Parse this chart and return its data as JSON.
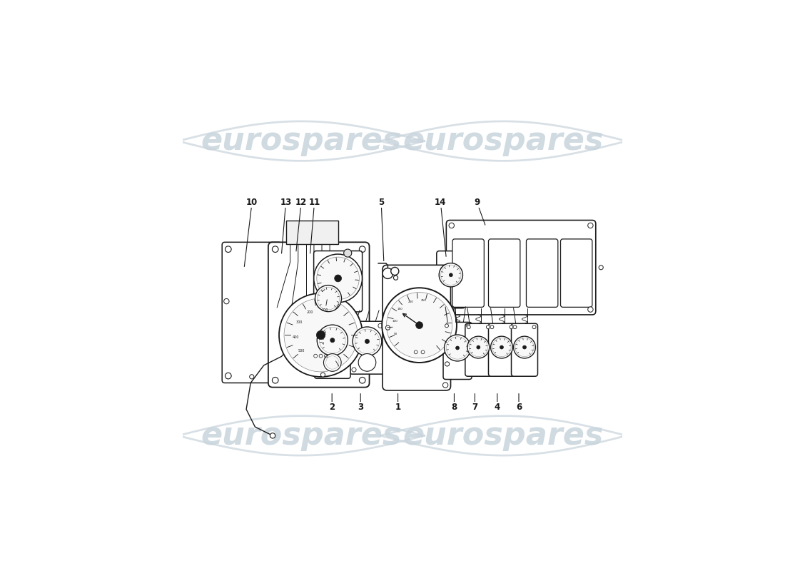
{
  "bg_color": "#ffffff",
  "line_color": "#1a1a1a",
  "watermark_text": "eurospares",
  "watermark_color": "#c8d4dc",
  "watermark_alpha": 0.85,
  "watermark_fontsize": 32,
  "fig_width": 11.0,
  "fig_height": 8.0,
  "dpi": 100,
  "leaders": [
    [
      "10",
      [
        0.14,
        0.545
      ],
      [
        0.158,
        0.695
      ]
    ],
    [
      "13",
      [
        0.225,
        0.575
      ],
      [
        0.235,
        0.695
      ]
    ],
    [
      "12",
      [
        0.258,
        0.58
      ],
      [
        0.27,
        0.695
      ]
    ],
    [
      "11",
      [
        0.29,
        0.575
      ],
      [
        0.3,
        0.695
      ]
    ],
    [
      "5",
      [
        0.458,
        0.558
      ],
      [
        0.452,
        0.695
      ]
    ],
    [
      "14",
      [
        0.6,
        0.568
      ],
      [
        0.587,
        0.695
      ]
    ],
    [
      "9",
      [
        0.69,
        0.64
      ],
      [
        0.67,
        0.695
      ]
    ],
    [
      "2",
      [
        0.34,
        0.265
      ],
      [
        0.34,
        0.23
      ]
    ],
    [
      "3",
      [
        0.405,
        0.265
      ],
      [
        0.405,
        0.23
      ]
    ],
    [
      "1",
      [
        0.49,
        0.265
      ],
      [
        0.49,
        0.23
      ]
    ],
    [
      "8",
      [
        0.618,
        0.265
      ],
      [
        0.618,
        0.23
      ]
    ],
    [
      "7",
      [
        0.665,
        0.265
      ],
      [
        0.665,
        0.23
      ]
    ],
    [
      "4",
      [
        0.716,
        0.265
      ],
      [
        0.716,
        0.23
      ]
    ],
    [
      "6",
      [
        0.765,
        0.265
      ],
      [
        0.765,
        0.23
      ]
    ]
  ]
}
